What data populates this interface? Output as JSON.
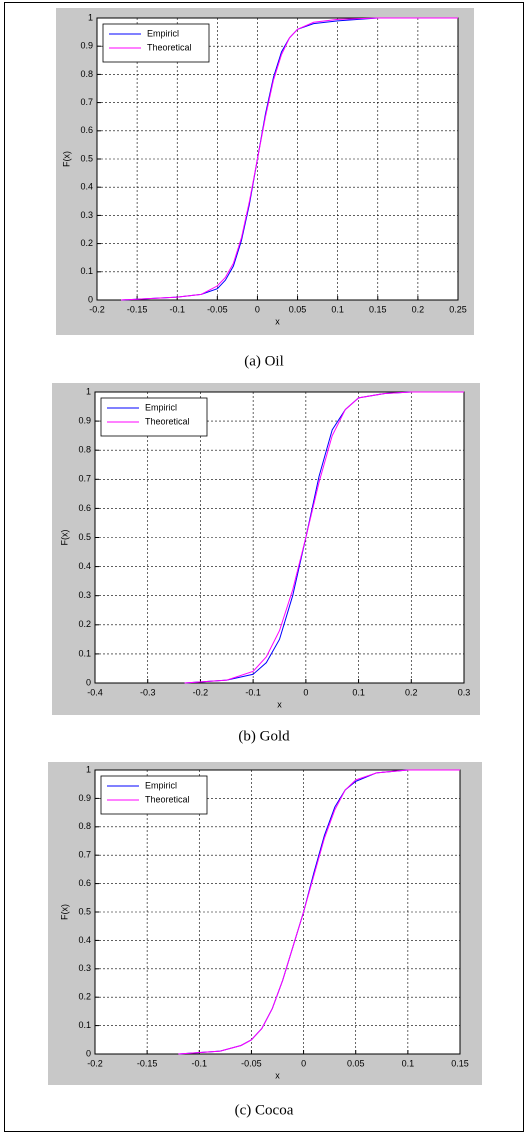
{
  "chart_data": [
    {
      "type": "line",
      "caption": "(a) Oil",
      "xlabel": "x",
      "ylabel": "F(x)",
      "x": [
        -0.17,
        -0.1,
        -0.07,
        -0.05,
        -0.04,
        -0.03,
        -0.02,
        -0.01,
        0,
        0.01,
        0.02,
        0.03,
        0.04,
        0.05,
        0.07,
        0.1,
        0.15,
        0.2,
        0.25
      ],
      "series": [
        {
          "name": "Empiricl",
          "color": "#0000ff",
          "values": [
            0,
            0.01,
            0.02,
            0.04,
            0.07,
            0.12,
            0.21,
            0.34,
            0.5,
            0.66,
            0.79,
            0.88,
            0.93,
            0.96,
            0.98,
            0.99,
            1,
            1,
            1
          ]
        },
        {
          "name": "Theoretical",
          "color": "#ff00ff",
          "values": [
            0,
            0.01,
            0.02,
            0.05,
            0.08,
            0.13,
            0.22,
            0.35,
            0.5,
            0.65,
            0.78,
            0.87,
            0.93,
            0.96,
            0.985,
            0.995,
            1,
            1,
            1
          ]
        }
      ],
      "xlim": [
        -0.2,
        0.25
      ],
      "xticks": [
        -0.2,
        -0.15,
        -0.1,
        -0.05,
        0,
        0.05,
        0.1,
        0.15,
        0.2,
        0.25
      ],
      "ylim": [
        0,
        1
      ],
      "yticks": [
        0,
        0.1,
        0.2,
        0.3,
        0.4,
        0.5,
        0.6,
        0.7,
        0.8,
        0.9,
        1
      ],
      "grid": true,
      "legend": "upper left"
    },
    {
      "type": "line",
      "caption": "(b) Gold",
      "xlabel": "x",
      "ylabel": "F(x)",
      "x": [
        -0.23,
        -0.15,
        -0.1,
        -0.075,
        -0.05,
        -0.025,
        0,
        0.025,
        0.05,
        0.075,
        0.1,
        0.15,
        0.2,
        0.3
      ],
      "series": [
        {
          "name": "Empiricl",
          "color": "#0000ff",
          "values": [
            0,
            0.01,
            0.03,
            0.07,
            0.15,
            0.3,
            0.5,
            0.71,
            0.87,
            0.94,
            0.98,
            0.995,
            1,
            1
          ]
        },
        {
          "name": "Theoretical",
          "color": "#ff00ff",
          "values": [
            0,
            0.01,
            0.04,
            0.09,
            0.18,
            0.32,
            0.5,
            0.69,
            0.85,
            0.94,
            0.98,
            0.995,
            1,
            1
          ]
        }
      ],
      "xlim": [
        -0.4,
        0.3
      ],
      "xticks": [
        -0.4,
        -0.3,
        -0.2,
        -0.1,
        0,
        0.1,
        0.2,
        0.3
      ],
      "ylim": [
        0,
        1
      ],
      "yticks": [
        0,
        0.1,
        0.2,
        0.3,
        0.4,
        0.5,
        0.6,
        0.7,
        0.8,
        0.9,
        1
      ],
      "grid": true,
      "legend": "upper left"
    },
    {
      "type": "line",
      "caption": "(c) Cocoa",
      "xlabel": "x",
      "ylabel": "F(x)",
      "x": [
        -0.12,
        -0.08,
        -0.06,
        -0.05,
        -0.04,
        -0.03,
        -0.02,
        -0.01,
        0,
        0.01,
        0.02,
        0.03,
        0.04,
        0.05,
        0.07,
        0.1,
        0.15
      ],
      "series": [
        {
          "name": "Empiricl",
          "color": "#0000ff",
          "values": [
            0,
            0.01,
            0.03,
            0.05,
            0.09,
            0.16,
            0.26,
            0.38,
            0.5,
            0.64,
            0.77,
            0.87,
            0.93,
            0.96,
            0.99,
            1,
            1
          ]
        },
        {
          "name": "Theoretical",
          "color": "#ff00ff",
          "values": [
            0,
            0.01,
            0.03,
            0.05,
            0.09,
            0.16,
            0.26,
            0.38,
            0.5,
            0.63,
            0.76,
            0.86,
            0.93,
            0.965,
            0.99,
            1,
            1
          ]
        }
      ],
      "xlim": [
        -0.2,
        0.15
      ],
      "xticks": [
        -0.2,
        -0.15,
        -0.1,
        -0.05,
        0,
        0.05,
        0.1,
        0.15
      ],
      "ylim": [
        0,
        1
      ],
      "yticks": [
        0,
        0.1,
        0.2,
        0.3,
        0.4,
        0.5,
        0.6,
        0.7,
        0.8,
        0.9,
        1
      ],
      "grid": true,
      "legend": "upper left"
    }
  ]
}
